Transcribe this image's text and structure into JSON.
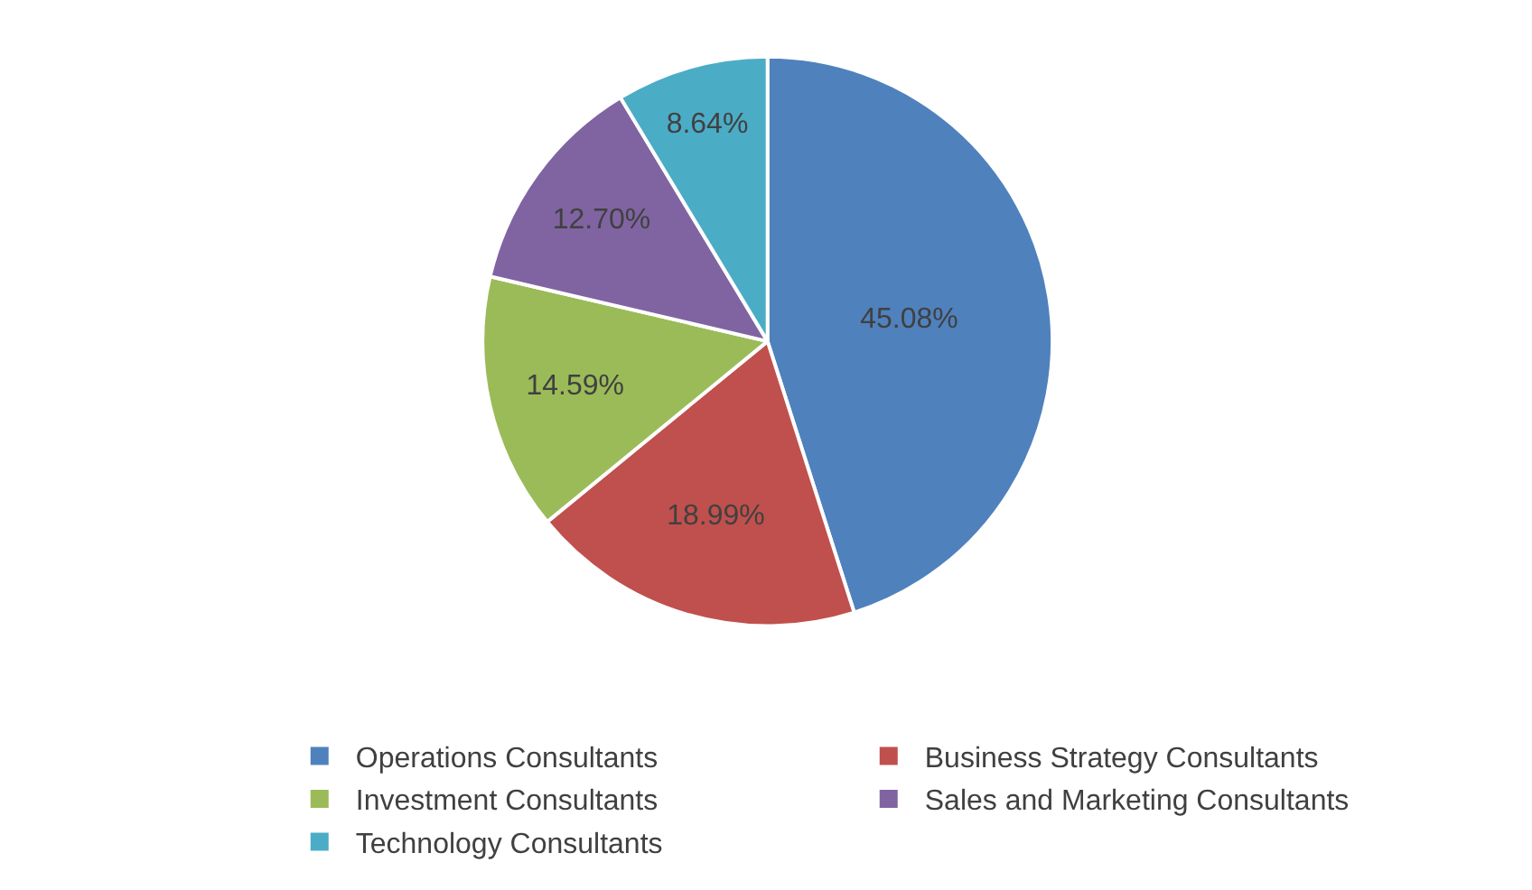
{
  "chart_data": {
    "type": "pie",
    "categories": [
      "Operations Consultants",
      "Business Strategy Consultants",
      "Investment Consultants",
      "Sales and Marketing Consultants",
      "Technology Consultants"
    ],
    "values": [
      45.08,
      18.99,
      14.59,
      12.7,
      8.64
    ],
    "value_labels": [
      "45.08%",
      "18.99%",
      "14.59%",
      "12.70%",
      "8.64%"
    ],
    "colors": [
      "#4f81bd",
      "#c0504d",
      "#9bbb59",
      "#8064a2",
      "#4bacc6"
    ],
    "legend": "bottom"
  }
}
